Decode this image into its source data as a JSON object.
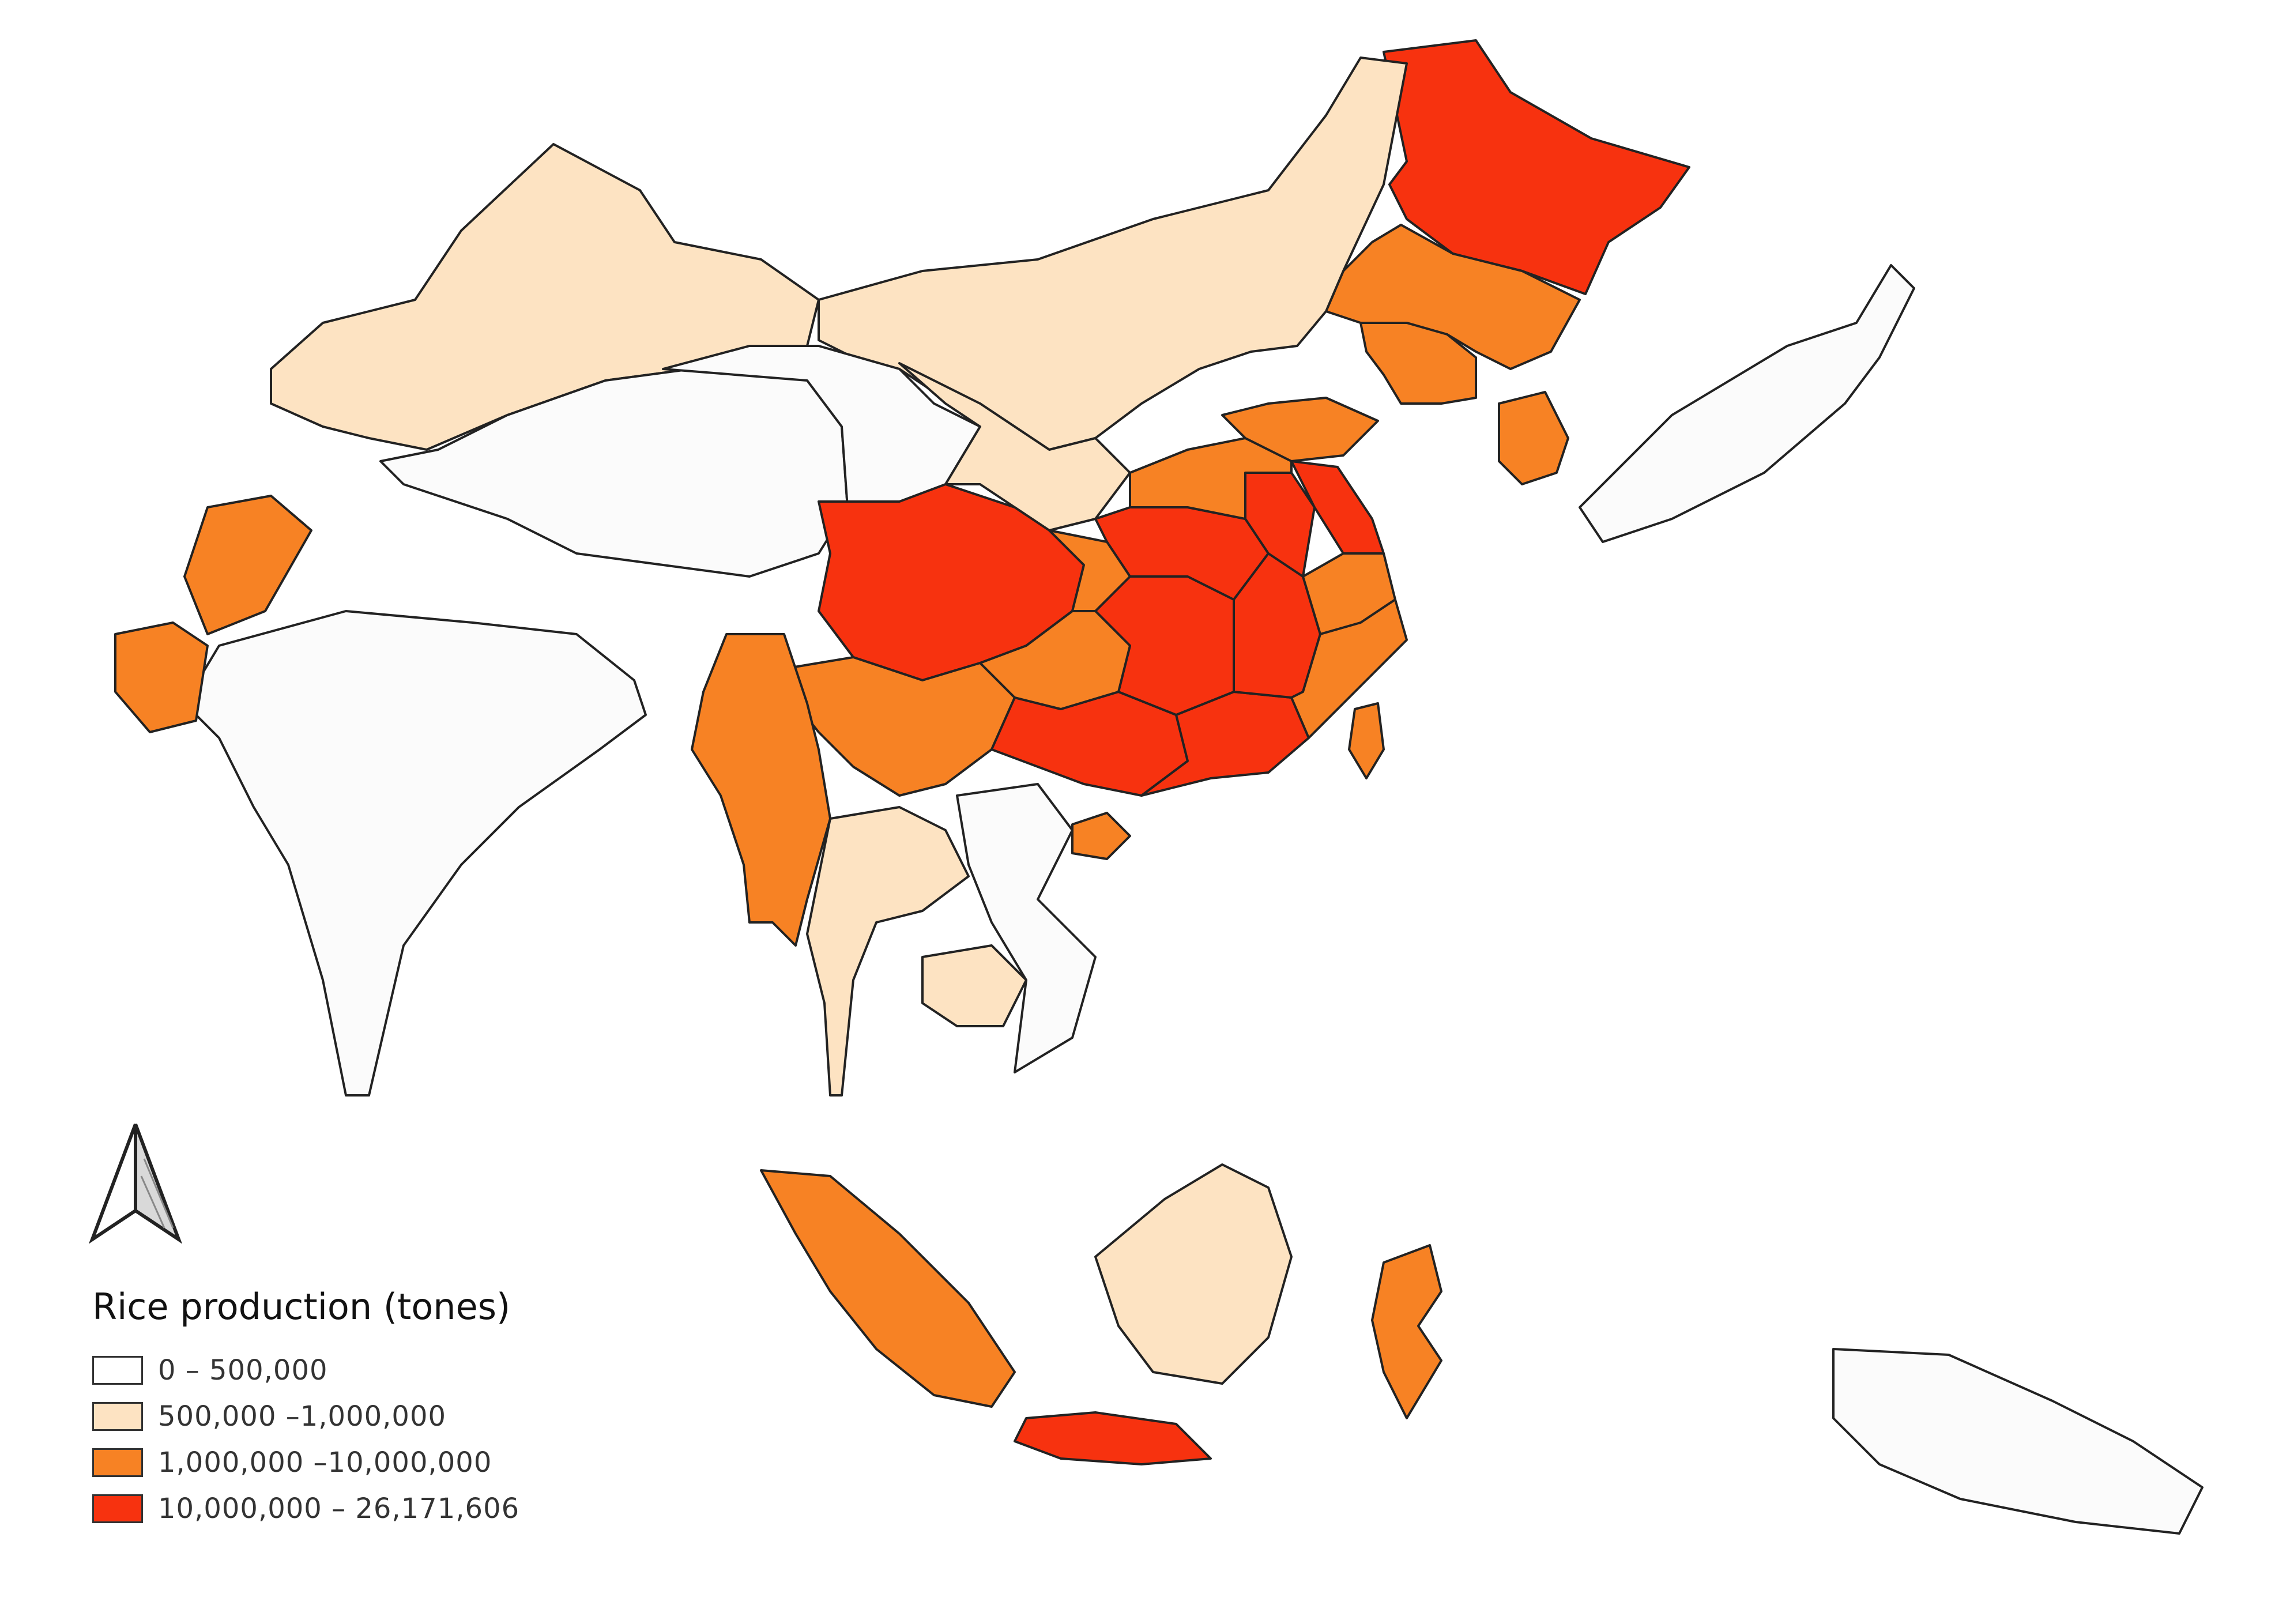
{
  "map": {
    "title": "",
    "colors": {
      "land_default": "#fbfbfb",
      "ocean": "#ffffff",
      "border": "#222222"
    },
    "regions": [
      {
        "name": "Heilongjiang",
        "class": 3
      },
      {
        "name": "Jilin",
        "class": 2
      },
      {
        "name": "Liaoning",
        "class": 2
      },
      {
        "name": "Inner Mongolia",
        "class": 1
      },
      {
        "name": "Xinjiang",
        "class": 1
      },
      {
        "name": "Tibet",
        "class": 0
      },
      {
        "name": "Qinghai",
        "class": 0
      },
      {
        "name": "Gansu",
        "class": 1
      },
      {
        "name": "Sichuan",
        "class": 3
      },
      {
        "name": "Yunnan",
        "class": 2
      },
      {
        "name": "Guangxi",
        "class": 3
      },
      {
        "name": "Guangdong",
        "class": 3
      },
      {
        "name": "Hunan",
        "class": 3
      },
      {
        "name": "Hubei",
        "class": 3
      },
      {
        "name": "Jiangxi",
        "class": 3
      },
      {
        "name": "Anhui",
        "class": 3
      },
      {
        "name": "Jiangsu",
        "class": 3
      },
      {
        "name": "Zhejiang",
        "class": 2
      },
      {
        "name": "Fujian",
        "class": 2
      },
      {
        "name": "Henan",
        "class": 2
      },
      {
        "name": "Shandong",
        "class": 2
      },
      {
        "name": "Guizhou",
        "class": 2
      },
      {
        "name": "Chongqing",
        "class": 2
      },
      {
        "name": "Taiwan",
        "class": 2
      },
      {
        "name": "Hainan",
        "class": 2
      },
      {
        "name": "Korea",
        "class": 2
      },
      {
        "name": "Japan",
        "class": 0
      },
      {
        "name": "Myanmar",
        "class": 2
      },
      {
        "name": "Thailand",
        "class": 1
      },
      {
        "name": "Cambodia",
        "class": 1
      },
      {
        "name": "Vietnam",
        "class": 0
      },
      {
        "name": "India",
        "class": 0
      },
      {
        "name": "Punjab Pakistan",
        "class": 2
      },
      {
        "name": "Sindh",
        "class": 2
      },
      {
        "name": "Sumatra",
        "class": 2
      },
      {
        "name": "Java",
        "class": 3
      },
      {
        "name": "Kalimantan",
        "class": 1
      },
      {
        "name": "Sulawesi",
        "class": 2
      },
      {
        "name": "Papua New Guinea",
        "class": 0
      }
    ]
  },
  "legend": {
    "title": "Rice production (tones)",
    "items": [
      {
        "label": "0 – 500,000",
        "color": "#ffffff"
      },
      {
        "label": "500,000 –1,000,000",
        "color": "#fde3c2"
      },
      {
        "label": "1,000,000 –10,000,000",
        "color": "#f78224"
      },
      {
        "label": "10,000,000 – 26,171,606",
        "color": "#f7320f"
      }
    ]
  },
  "north_arrow": {
    "icon": "north-arrow-icon"
  }
}
